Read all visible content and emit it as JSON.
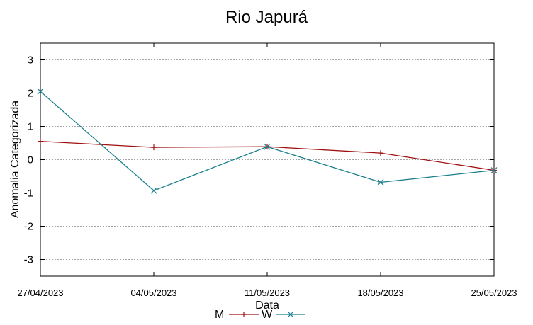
{
  "chart_data": {
    "type": "line",
    "title": "Rio Japurá",
    "xlabel": "Data",
    "ylabel": "Anomalia Categorizada",
    "categories": [
      "27/04/2023",
      "04/05/2023",
      "11/05/2023",
      "18/05/2023",
      "25/05/2023"
    ],
    "yticks": [
      "3",
      "2",
      "1",
      "0",
      "-1",
      "-2",
      "-3"
    ],
    "ylim": [
      -3.5,
      3.5
    ],
    "grid": true,
    "legend": "bottom-center",
    "series": [
      {
        "name": "M",
        "values": [
          0.55,
          0.37,
          0.39,
          0.2,
          -0.32
        ],
        "color": "#a01010",
        "marker": "+"
      },
      {
        "name": "W",
        "values": [
          2.05,
          -0.93,
          0.39,
          -0.68,
          -0.32
        ],
        "color": "#1a7f8c",
        "marker": "x"
      }
    ]
  }
}
